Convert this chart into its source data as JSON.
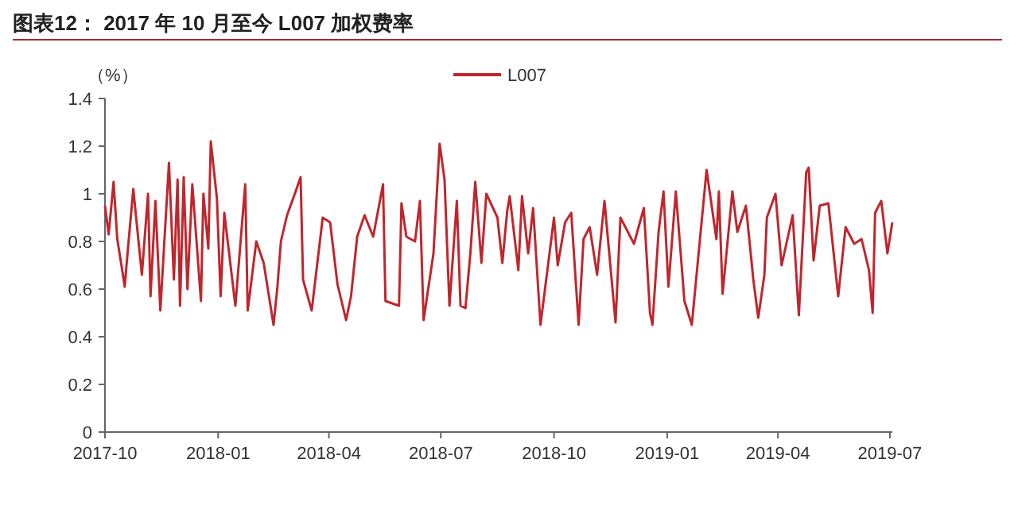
{
  "chart_data": {
    "type": "line",
    "title": "图表12： 2017 年 10 月至今 L007 加权费率",
    "ylabel": "（%）",
    "x": [
      "2017-10-01",
      "2017-10-04",
      "2017-10-08",
      "2017-10-11",
      "2017-10-15",
      "2017-10-17",
      "2017-10-19",
      "2017-10-24",
      "2017-10-31",
      "2017-11-05",
      "2017-11-07",
      "2017-11-11",
      "2017-11-15",
      "2017-11-22",
      "2017-11-26",
      "2017-11-29",
      "2017-12-01",
      "2017-12-04",
      "2017-12-07",
      "2017-12-11",
      "2017-12-18",
      "2017-12-20",
      "2017-12-24",
      "2017-12-26",
      "2017-12-31",
      "2018-01-03",
      "2018-01-06",
      "2018-01-15",
      "2018-01-23",
      "2018-01-25",
      "2018-02-01",
      "2018-02-07",
      "2018-02-15",
      "2018-02-18",
      "2018-02-21",
      "2018-02-26",
      "2018-03-05",
      "2018-03-09",
      "2018-03-11",
      "2018-03-18",
      "2018-03-27",
      "2018-04-02",
      "2018-04-08",
      "2018-04-15",
      "2018-04-19",
      "2018-04-24",
      "2018-04-30",
      "2018-05-07",
      "2018-05-15",
      "2018-05-17",
      "2018-05-28",
      "2018-05-30",
      "2018-06-03",
      "2018-06-10",
      "2018-06-14",
      "2018-06-17",
      "2018-06-25",
      "2018-06-30",
      "2018-07-04",
      "2018-07-08",
      "2018-07-14",
      "2018-07-17",
      "2018-07-21",
      "2018-07-25",
      "2018-07-29",
      "2018-08-03",
      "2018-08-07",
      "2018-08-16",
      "2018-08-20",
      "2018-08-24",
      "2018-08-26",
      "2018-09-02",
      "2018-09-05",
      "2018-09-10",
      "2018-09-14",
      "2018-09-20",
      "2018-10-01",
      "2018-10-04",
      "2018-10-10",
      "2018-10-15",
      "2018-10-21",
      "2018-10-25",
      "2018-10-30",
      "2018-11-05",
      "2018-11-11",
      "2018-11-20",
      "2018-11-24",
      "2018-12-05",
      "2018-12-13",
      "2018-12-18",
      "2018-12-20",
      "2018-12-25",
      "2018-12-29",
      "2019-01-02",
      "2019-01-08",
      "2019-01-15",
      "2019-01-21",
      "2019-02-02",
      "2019-02-10",
      "2019-02-12",
      "2019-02-15",
      "2019-02-23",
      "2019-02-27",
      "2019-03-06",
      "2019-03-12",
      "2019-03-16",
      "2019-03-21",
      "2019-03-23",
      "2019-03-30",
      "2019-04-04",
      "2019-04-13",
      "2019-04-18",
      "2019-04-24",
      "2019-04-26",
      "2019-04-30",
      "2019-05-05",
      "2019-05-12",
      "2019-05-20",
      "2019-05-26",
      "2019-06-02",
      "2019-06-08",
      "2019-06-14",
      "2019-06-17",
      "2019-06-19",
      "2019-06-24",
      "2019-06-29",
      "2019-07-03"
    ],
    "series": [
      {
        "name": "L007",
        "color": "#c0262d",
        "values": [
          0.95,
          0.83,
          1.05,
          0.81,
          0.68,
          0.61,
          0.73,
          1.02,
          0.66,
          1.0,
          0.57,
          0.97,
          0.51,
          1.13,
          0.64,
          1.06,
          0.53,
          1.07,
          0.6,
          1.04,
          0.55,
          1.0,
          0.77,
          1.22,
          0.98,
          0.57,
          0.92,
          0.53,
          1.04,
          0.51,
          0.8,
          0.71,
          0.45,
          0.6,
          0.8,
          0.91,
          1.01,
          1.07,
          0.64,
          0.51,
          0.9,
          0.88,
          0.62,
          0.47,
          0.57,
          0.82,
          0.91,
          0.82,
          1.04,
          0.55,
          0.53,
          0.96,
          0.82,
          0.8,
          0.97,
          0.47,
          0.75,
          1.21,
          1.06,
          0.53,
          0.97,
          0.53,
          0.52,
          0.75,
          1.05,
          0.71,
          1.0,
          0.9,
          0.71,
          0.93,
          0.99,
          0.68,
          0.99,
          0.75,
          0.94,
          0.45,
          0.9,
          0.7,
          0.88,
          0.92,
          0.45,
          0.81,
          0.86,
          0.66,
          0.97,
          0.46,
          0.9,
          0.79,
          0.94,
          0.5,
          0.45,
          0.84,
          1.01,
          0.61,
          1.01,
          0.55,
          0.45,
          1.1,
          0.81,
          1.01,
          0.58,
          1.01,
          0.84,
          0.95,
          0.64,
          0.48,
          0.66,
          0.9,
          1.0,
          0.7,
          0.91,
          0.49,
          1.09,
          1.11,
          0.72,
          0.95,
          0.96,
          0.57,
          0.86,
          0.79,
          0.81,
          0.68,
          0.5,
          0.92,
          0.97,
          0.75,
          0.88
        ]
      }
    ],
    "xlim": [
      "2017-10-01",
      "2019-07-03"
    ],
    "xticks": [
      {
        "value": "2017-10-01",
        "label": "2017-10"
      },
      {
        "value": "2018-01-01",
        "label": "2018-01"
      },
      {
        "value": "2018-04-01",
        "label": "2018-04"
      },
      {
        "value": "2018-07-01",
        "label": "2018-07"
      },
      {
        "value": "2018-10-01",
        "label": "2018-10"
      },
      {
        "value": "2019-01-01",
        "label": "2019-01"
      },
      {
        "value": "2019-04-01",
        "label": "2019-04"
      },
      {
        "value": "2019-07-01",
        "label": "2019-07"
      }
    ],
    "ylim": [
      0,
      1.4
    ],
    "yticks": [
      0,
      0.2,
      0.4,
      0.6,
      0.8,
      1,
      1.2,
      1.4
    ],
    "legend": "top",
    "grid": false,
    "marker": "none",
    "line_style": "solid"
  }
}
